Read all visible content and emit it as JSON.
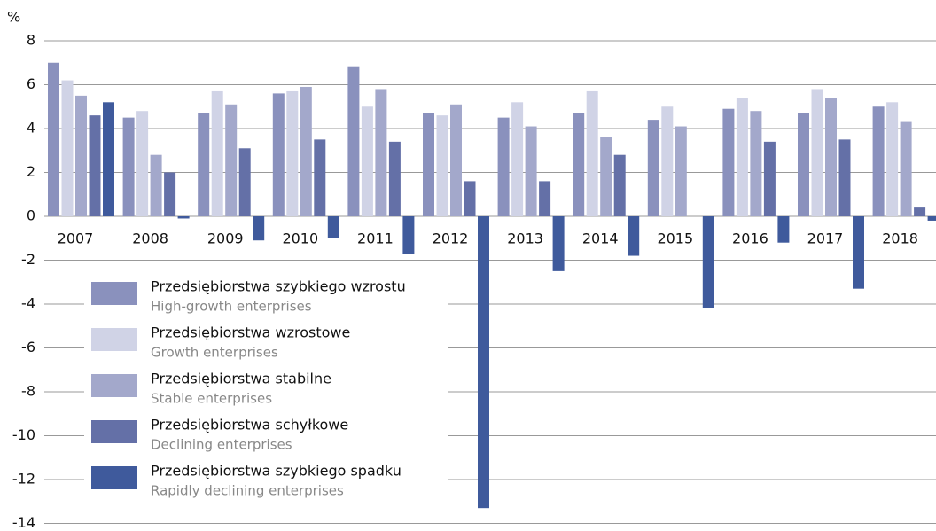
{
  "chart_data": {
    "type": "bar",
    "ylabel": "%",
    "categories": [
      "2007",
      "2008",
      "2009",
      "2010",
      "2011",
      "2012",
      "2013",
      "2014",
      "2015",
      "2016",
      "2017",
      "2018"
    ],
    "series": [
      {
        "name": "Przedsiębiorstwa szybkiego wzrostu",
        "name_en": "High-growth enterprises",
        "color": "#8a91bd",
        "values": [
          7.0,
          4.5,
          4.7,
          5.6,
          6.8,
          4.7,
          4.5,
          4.7,
          4.4,
          4.9,
          4.7,
          5.0
        ]
      },
      {
        "name": "Przedsiębiorstwa wzrostowe",
        "name_en": "Growth enterprises",
        "color": "#d0d3e6",
        "values": [
          6.2,
          4.8,
          5.7,
          5.7,
          5.0,
          4.6,
          5.2,
          5.7,
          5.0,
          5.4,
          5.8,
          5.2
        ]
      },
      {
        "name": "Przedsiębiorstwa stabilne",
        "name_en": "Stable enterprises",
        "color": "#a3a8cb",
        "values": [
          5.5,
          2.8,
          5.1,
          5.9,
          5.8,
          5.1,
          4.1,
          3.6,
          4.1,
          4.8,
          5.4,
          4.3
        ]
      },
      {
        "name": "Przedsiębiorstwa schyłkowe",
        "name_en": "Declining enterprises",
        "color": "#6470a7",
        "values": [
          4.6,
          2.0,
          3.1,
          3.5,
          3.4,
          1.6,
          1.6,
          2.8,
          null,
          3.4,
          3.5,
          0.4
        ]
      },
      {
        "name": "Przedsiębiorstwa szybkiego spadku",
        "name_en": "Rapidly declining enterprises",
        "color": "#3f5a9c",
        "values": [
          5.2,
          -0.1,
          -1.1,
          -1.0,
          -1.7,
          -13.3,
          -2.5,
          -1.8,
          -4.2,
          -1.2,
          -3.3,
          -0.2
        ]
      }
    ],
    "ylim": [
      -14,
      8
    ],
    "yticks": [
      8,
      6,
      4,
      2,
      0,
      -2,
      -4,
      -6,
      -8,
      -10,
      -12,
      -14
    ],
    "grid": true
  }
}
